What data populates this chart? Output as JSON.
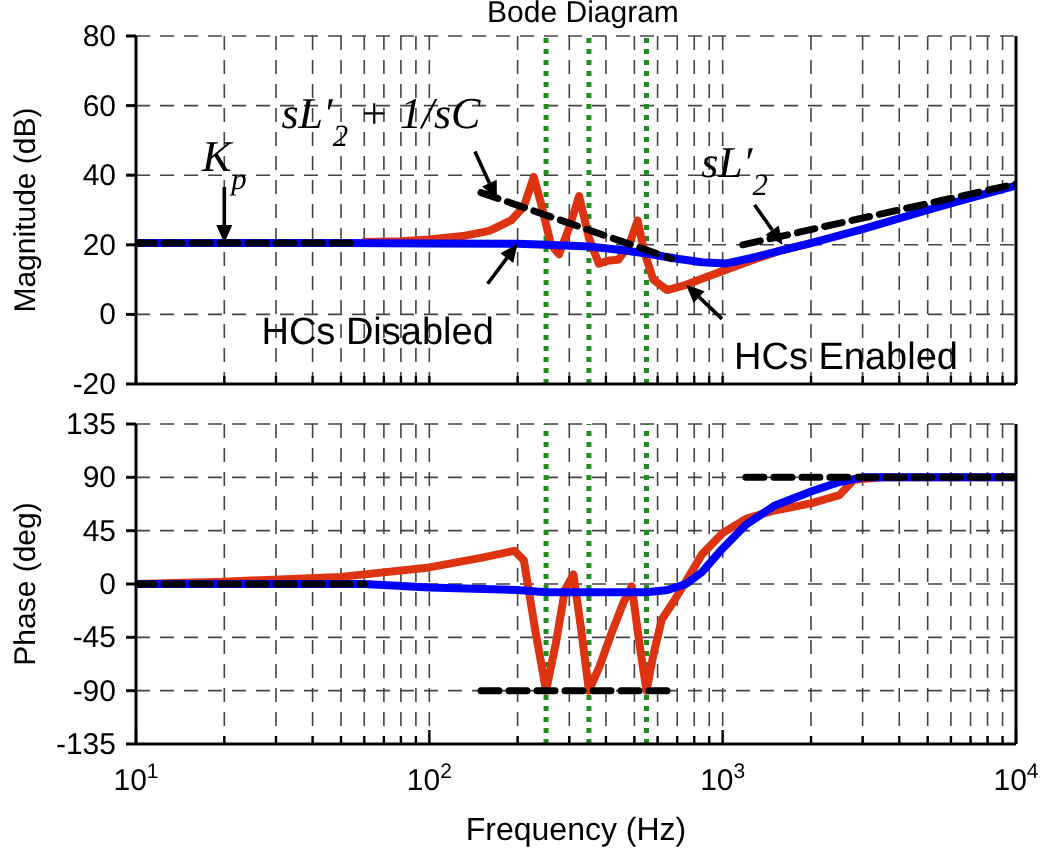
{
  "chart_data": [
    {
      "type": "line",
      "title": "Bode Diagram",
      "ylabel": "Magnitude (dB)",
      "log": "x",
      "grid": true,
      "tick_labels": "y",
      "xlim": [
        10,
        10000
      ],
      "xticks": [
        {
          "value": 10,
          "label": null
        },
        {
          "value": 20,
          "label": null
        },
        {
          "value": 30,
          "label": null
        },
        {
          "value": 40,
          "label": null
        },
        {
          "value": 50,
          "label": null
        },
        {
          "value": 60,
          "label": null
        },
        {
          "value": 70,
          "label": null
        },
        {
          "value": 80,
          "label": null
        },
        {
          "value": 90,
          "label": null
        },
        {
          "value": 100,
          "label": null
        },
        {
          "value": 200,
          "label": null
        },
        {
          "value": 300,
          "label": null
        },
        {
          "value": 400,
          "label": null
        },
        {
          "value": 500,
          "label": null
        },
        {
          "value": 600,
          "label": null
        },
        {
          "value": 700,
          "label": null
        },
        {
          "value": 800,
          "label": null
        },
        {
          "value": 900,
          "label": null
        },
        {
          "value": 1000,
          "label": null
        },
        {
          "value": 2000,
          "label": null
        },
        {
          "value": 3000,
          "label": null
        },
        {
          "value": 4000,
          "label": null
        },
        {
          "value": 5000,
          "label": null
        },
        {
          "value": 6000,
          "label": null
        },
        {
          "value": 7000,
          "label": null
        },
        {
          "value": 8000,
          "label": null
        },
        {
          "value": 9000,
          "label": null
        },
        {
          "value": 10000,
          "label": null
        }
      ],
      "ylim": [
        -20,
        80
      ],
      "yticks": [
        -20,
        0,
        20,
        40,
        60,
        80
      ],
      "ref_lines": [
        {
          "axis": "x",
          "value": 250,
          "color": "#228b22",
          "line_style": "dotted"
        },
        {
          "axis": "x",
          "value": 350,
          "color": "#228b22",
          "line_style": "dotted"
        },
        {
          "axis": "x",
          "value": 550,
          "color": "#228b22",
          "line_style": "dotted"
        }
      ],
      "annotations": [
        {
          "text": "K$_{p}$",
          "x": 20,
          "y": 20.5
        },
        {
          "text": "sL′$_{2}$ + 1/sC",
          "x": 170,
          "y": 33
        },
        {
          "text": "sL′$_{2}$",
          "x": 1600,
          "y": 20
        }
      ],
      "series": [
        {
          "name": "HCs Enabled",
          "color": "#dd3311",
          "line_style": "solid",
          "x": [
            60,
            80,
            100,
            130,
            160,
            190,
            210,
            227,
            240,
            260,
            277,
            300,
            324,
            350,
            378,
            410,
            441,
            480,
            513,
            540,
            580,
            646,
            750,
            900,
            1000,
            1300,
            1600,
            2000
          ],
          "values": [
            20.8,
            21,
            21.5,
            22.5,
            24,
            27,
            31,
            39.5,
            32,
            20,
            17.3,
            25,
            34,
            22,
            14.6,
            15.5,
            15.7,
            20,
            27,
            18,
            10,
            7,
            8.5,
            11,
            12.5,
            16,
            18.5,
            20.5
          ]
        },
        {
          "name": "HCs Disabled",
          "color": "#0000ff",
          "line_style": "solid",
          "x": [
            10,
            50,
            100,
            200,
            250,
            350,
            450,
            550,
            700,
            850,
            1020,
            1300,
            1600,
            2000,
            3000,
            5000,
            7000,
            10000
          ],
          "values": [
            20.5,
            20.5,
            20.4,
            20.3,
            20,
            19.5,
            18.5,
            17.5,
            16,
            15,
            14.6,
            16.5,
            18.5,
            20.5,
            24.5,
            30,
            33.5,
            37
          ]
        },
        {
          "color": "#000000",
          "line_style": "dashed",
          "x": [
            10,
            58
          ],
          "values": [
            20.5,
            20.5
          ]
        },
        {
          "color": "#000000",
          "line_style": "dashed",
          "x": [
            150,
            670
          ],
          "values": [
            35,
            16
          ]
        },
        {
          "color": "#000000",
          "line_style": "dashed",
          "x": [
            1170,
            10000
          ],
          "values": [
            20,
            37.5
          ]
        }
      ]
    },
    {
      "type": "line",
      "xlabel": "Frequency  (Hz)",
      "ylabel": "Phase (deg)",
      "log": "x",
      "grid": true,
      "xlim": [
        10,
        10000
      ],
      "xticks": [
        {
          "value": 10,
          "label": "10$^{1}$"
        },
        {
          "value": 20,
          "label": null
        },
        {
          "value": 30,
          "label": null
        },
        {
          "value": 40,
          "label": null
        },
        {
          "value": 50,
          "label": null
        },
        {
          "value": 60,
          "label": null
        },
        {
          "value": 70,
          "label": null
        },
        {
          "value": 80,
          "label": null
        },
        {
          "value": 90,
          "label": null
        },
        {
          "value": 100,
          "label": "10$^{2}$"
        },
        {
          "value": 200,
          "label": null
        },
        {
          "value": 300,
          "label": null
        },
        {
          "value": 400,
          "label": null
        },
        {
          "value": 500,
          "label": null
        },
        {
          "value": 600,
          "label": null
        },
        {
          "value": 700,
          "label": null
        },
        {
          "value": 800,
          "label": null
        },
        {
          "value": 900,
          "label": null
        },
        {
          "value": 1000,
          "label": "10$^{3}$"
        },
        {
          "value": 2000,
          "label": null
        },
        {
          "value": 3000,
          "label": null
        },
        {
          "value": 4000,
          "label": null
        },
        {
          "value": 5000,
          "label": null
        },
        {
          "value": 6000,
          "label": null
        },
        {
          "value": 7000,
          "label": null
        },
        {
          "value": 8000,
          "label": null
        },
        {
          "value": 9000,
          "label": null
        },
        {
          "value": 10000,
          "label": "10$^{4}$"
        }
      ],
      "ylim": [
        -135,
        135
      ],
      "yticks": [
        -135,
        -90,
        -45,
        0,
        45,
        90,
        135
      ],
      "ref_lines": [
        {
          "axis": "x",
          "value": 250,
          "color": "#228b22",
          "line_style": "dotted"
        },
        {
          "axis": "x",
          "value": 350,
          "color": "#228b22",
          "line_style": "dotted"
        },
        {
          "axis": "x",
          "value": 550,
          "color": "#228b22",
          "line_style": "dotted"
        }
      ],
      "series": [
        {
          "color": "#dd3311",
          "line_style": "solid",
          "x": [
            10,
            20,
            50,
            100,
            150,
            195,
            210,
            230,
            250,
            270,
            290,
            310,
            330,
            350,
            380,
            420,
            460,
            490,
            520,
            550,
            580,
            620,
            680,
            740,
            850,
            1000,
            1200,
            1500,
            2000,
            2500,
            2800,
            3500,
            10000
          ],
          "values": [
            0,
            2,
            6,
            14,
            22,
            28,
            20,
            -40,
            -90,
            -50,
            -5,
            8,
            -40,
            -90,
            -70,
            -40,
            -15,
            -2,
            -50,
            -90,
            -60,
            -30,
            -15,
            0,
            25,
            43,
            55,
            62,
            68,
            75,
            88,
            90,
            90
          ]
        },
        {
          "color": "#0000ff",
          "line_style": "solid",
          "x": [
            10,
            60,
            100,
            200,
            250,
            550,
            650,
            750,
            850,
            1000,
            1200,
            1500,
            2000,
            2500,
            3000,
            10000
          ],
          "values": [
            0,
            0,
            -3,
            -5,
            -7,
            -7,
            -5,
            0,
            10,
            30,
            50,
            66,
            78,
            86,
            90,
            90
          ]
        },
        {
          "color": "#000000",
          "line_style": "dashed",
          "x": [
            10,
            60
          ],
          "values": [
            0,
            0
          ]
        },
        {
          "color": "#000000",
          "line_style": "dashed",
          "x": [
            150,
            690
          ],
          "values": [
            -90,
            -90
          ]
        },
        {
          "color": "#000000",
          "line_style": "dashed",
          "x": [
            1200,
            10000
          ],
          "values": [
            90,
            90
          ]
        }
      ]
    }
  ]
}
